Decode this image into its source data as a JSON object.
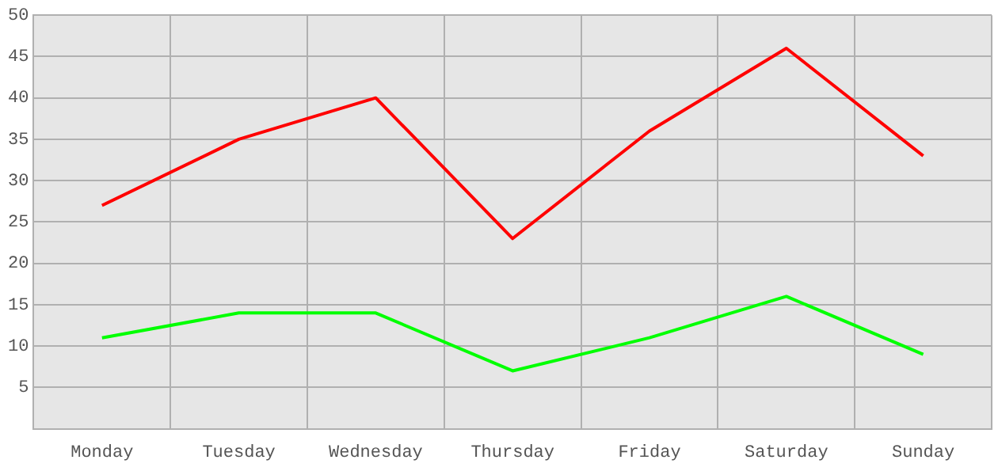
{
  "chart_data": {
    "type": "line",
    "categories": [
      "Monday",
      "Tuesday",
      "Wednesday",
      "Thursday",
      "Friday",
      "Saturday",
      "Sunday"
    ],
    "series": [
      {
        "color": "#ff0000",
        "values": [
          27,
          35,
          40,
          23,
          36,
          46,
          33
        ]
      },
      {
        "color": "#00ff00",
        "values": [
          11,
          14,
          14,
          7,
          11,
          16,
          9
        ]
      }
    ],
    "ylim": [
      0,
      50
    ],
    "yticks": [
      5,
      10,
      15,
      20,
      25,
      30,
      35,
      40,
      45,
      50
    ],
    "grid": true,
    "legend": false,
    "marker": "none",
    "line_style": "solid"
  }
}
